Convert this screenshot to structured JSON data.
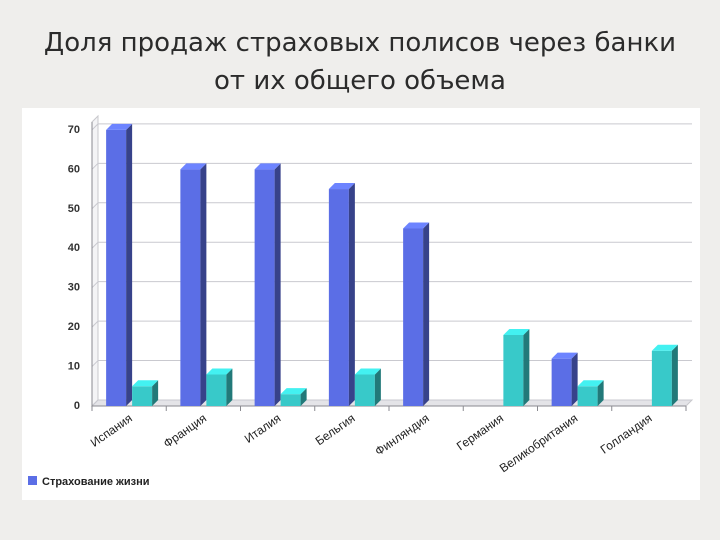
{
  "slide": {
    "title_line1": "Доля продаж страховых полисов через банки",
    "title_line2": "от их общего объема"
  },
  "chart_data": {
    "type": "bar",
    "categories": [
      "Испания",
      "Франция",
      "Италия",
      "Бельгия",
      "Финляндия",
      "Германия",
      "Великобритания",
      "Голландия"
    ],
    "series": [
      {
        "name": "Страхование жизни",
        "values": [
          70,
          60,
          60,
          55,
          45,
          null,
          12,
          null
        ],
        "color": "#5b6ee6"
      },
      {
        "name": "",
        "values": [
          5,
          8,
          3,
          8,
          null,
          18,
          5,
          14
        ],
        "color": "#38c9c9"
      }
    ],
    "yticks": [
      0,
      10,
      20,
      30,
      40,
      50,
      60,
      70
    ],
    "ylim": [
      0,
      72
    ],
    "grid": true,
    "legend": "bottom-left"
  }
}
